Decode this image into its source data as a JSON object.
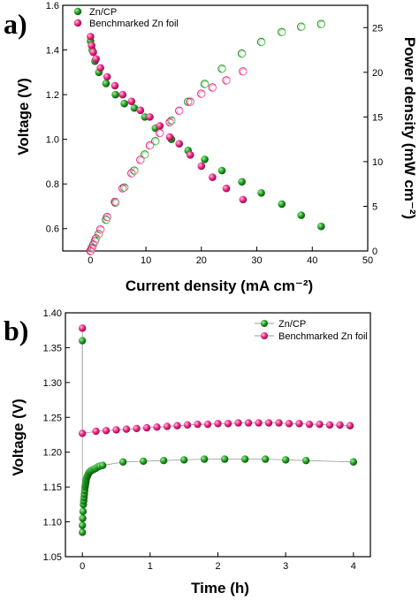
{
  "colors": {
    "zn_cp": "#1f8a1f",
    "zn_cp_light": "#7fdc7f",
    "zn_foil": "#e0207a",
    "zn_foil_light": "#ff8cc4",
    "line": "#999999"
  },
  "chart_data": [
    {
      "type": "scatter",
      "panel_label": "a)",
      "xlabel": "Current density (mA cm⁻²)",
      "ylabel": "Voltage (V)",
      "ylabel2": "Power density (mW cm⁻²)",
      "xlim": [
        -5,
        50
      ],
      "ylim": [
        0.5,
        1.6
      ],
      "y2lim": [
        0,
        27.5
      ],
      "xticks": [
        "0",
        "10",
        "20",
        "30",
        "40",
        "50"
      ],
      "yticks": [
        "0.6",
        "0.8",
        "1.0",
        "1.2",
        "1.4",
        "1.6"
      ],
      "y2ticks": [
        "0",
        "5",
        "10",
        "15",
        "20",
        "25"
      ],
      "legend": {
        "position": "top-left",
        "items": [
          "Zn/CP",
          "Benchmarked Zn foil"
        ]
      },
      "series": [
        {
          "name": "Zn/CP",
          "axis": "voltage",
          "marker": "filled",
          "color_key": "zn_cp",
          "x": [
            0.0,
            0.3,
            0.8,
            1.5,
            2.8,
            4.5,
            6.1,
            7.9,
            9.8,
            11.7,
            14.6,
            17.6,
            20.6,
            23.7,
            27.3,
            30.8,
            34.5,
            38.0,
            41.6
          ],
          "y": [
            1.44,
            1.4,
            1.35,
            1.3,
            1.25,
            1.2,
            1.16,
            1.14,
            1.1,
            1.05,
            1.0,
            0.95,
            0.91,
            0.86,
            0.81,
            0.76,
            0.71,
            0.66,
            0.61
          ]
        },
        {
          "name": "Benchmarked Zn foil",
          "axis": "voltage",
          "marker": "filled",
          "color_key": "zn_foil",
          "x": [
            0.0,
            0.2,
            0.5,
            1.0,
            1.8,
            3.0,
            4.4,
            5.8,
            7.4,
            9.0,
            10.7,
            12.5,
            14.3,
            16.0,
            18.0,
            20.0,
            22.0,
            24.5,
            27.5
          ],
          "y": [
            1.46,
            1.42,
            1.39,
            1.36,
            1.32,
            1.28,
            1.24,
            1.2,
            1.17,
            1.13,
            1.1,
            1.06,
            1.01,
            0.98,
            0.93,
            0.88,
            0.83,
            0.78,
            0.73
          ]
        },
        {
          "name": "Zn/CP",
          "axis": "power",
          "marker": "open",
          "color_key": "zn_cp",
          "x": [
            0.0,
            0.3,
            0.8,
            1.5,
            2.8,
            4.5,
            6.1,
            7.9,
            9.8,
            11.7,
            14.6,
            17.6,
            20.6,
            23.7,
            27.3,
            30.8,
            34.5,
            38.0,
            41.6
          ],
          "y": [
            0.0,
            0.4,
            1.1,
            1.9,
            3.5,
            5.4,
            7.1,
            9.0,
            10.8,
            12.3,
            14.6,
            16.7,
            18.7,
            20.4,
            22.1,
            23.4,
            24.5,
            25.1,
            25.4
          ]
        },
        {
          "name": "Benchmarked Zn foil",
          "axis": "power",
          "marker": "open",
          "color_key": "zn_foil",
          "x": [
            0.0,
            0.2,
            0.5,
            1.0,
            1.8,
            3.0,
            4.4,
            5.8,
            7.4,
            9.0,
            10.7,
            12.5,
            14.3,
            16.0,
            18.0,
            20.0,
            22.0,
            24.5,
            27.5
          ],
          "y": [
            0.0,
            0.3,
            0.7,
            1.4,
            2.4,
            3.8,
            5.5,
            7.0,
            8.7,
            10.2,
            11.8,
            13.2,
            14.4,
            15.7,
            16.7,
            17.6,
            18.3,
            19.1,
            20.1
          ]
        }
      ]
    },
    {
      "type": "line",
      "panel_label": "b)",
      "xlabel": "Time (h)",
      "ylabel": "Voltage (V)",
      "xlim": [
        -0.25,
        4.25
      ],
      "ylim": [
        1.05,
        1.4
      ],
      "xticks": [
        "0",
        "1",
        "2",
        "3",
        "4"
      ],
      "yticks": [
        "1.05",
        "1.10",
        "1.15",
        "1.20",
        "1.25",
        "1.30",
        "1.35",
        "1.40"
      ],
      "legend": {
        "position": "top-right",
        "items": [
          "Zn/CP",
          "Benchmarked Zn foil"
        ]
      },
      "series": [
        {
          "name": "Zn/CP",
          "color_key": "zn_cp",
          "x": [
            0.0,
            0.0,
            0.0,
            0.005,
            0.01,
            0.015,
            0.02,
            0.025,
            0.03,
            0.035,
            0.04,
            0.045,
            0.05,
            0.055,
            0.06,
            0.07,
            0.08,
            0.09,
            0.1,
            0.11,
            0.12,
            0.14,
            0.16,
            0.18,
            0.2,
            0.23,
            0.26,
            0.3,
            0.6,
            0.9,
            1.2,
            1.5,
            1.8,
            2.1,
            2.4,
            2.7,
            3.0,
            3.3,
            4.0
          ],
          "y": [
            1.36,
            1.085,
            1.095,
            1.105,
            1.115,
            1.125,
            1.13,
            1.135,
            1.14,
            1.145,
            1.15,
            1.153,
            1.156,
            1.159,
            1.162,
            1.165,
            1.167,
            1.169,
            1.171,
            1.172,
            1.173,
            1.174,
            1.175,
            1.176,
            1.177,
            1.179,
            1.18,
            1.181,
            1.186,
            1.187,
            1.188,
            1.189,
            1.19,
            1.19,
            1.19,
            1.19,
            1.189,
            1.188,
            1.186
          ]
        },
        {
          "name": "Benchmarked Zn foil",
          "color_key": "zn_foil",
          "x": [
            0.0,
            0.0,
            0.2,
            0.35,
            0.5,
            0.65,
            0.8,
            0.95,
            1.1,
            1.25,
            1.4,
            1.55,
            1.7,
            1.85,
            2.0,
            2.15,
            2.3,
            2.45,
            2.6,
            2.75,
            2.9,
            3.05,
            3.2,
            3.35,
            3.5,
            3.65,
            3.8,
            3.95
          ],
          "y": [
            1.378,
            1.227,
            1.23,
            1.231,
            1.232,
            1.233,
            1.234,
            1.235,
            1.236,
            1.237,
            1.238,
            1.239,
            1.24,
            1.24,
            1.241,
            1.241,
            1.242,
            1.242,
            1.242,
            1.242,
            1.242,
            1.241,
            1.241,
            1.24,
            1.24,
            1.239,
            1.239,
            1.238
          ]
        }
      ]
    }
  ]
}
